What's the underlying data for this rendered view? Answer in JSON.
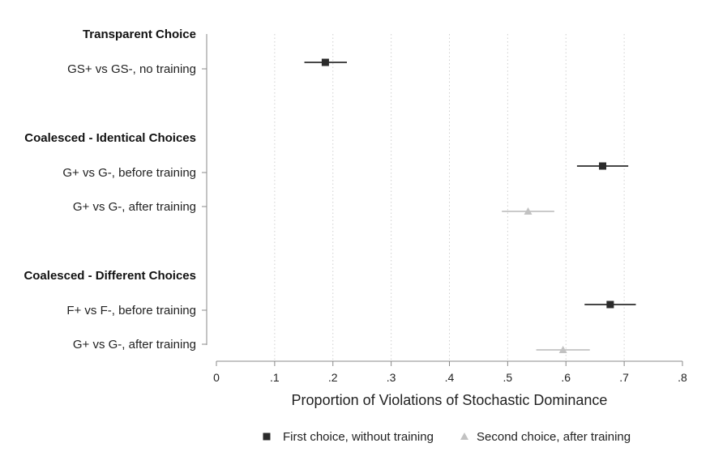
{
  "chart_data": {
    "type": "scatter",
    "subtype": "forest-plot-with-confidence-intervals",
    "xlabel": "Proportion of Violations of Stochastic Dominance",
    "xlim": [
      0,
      0.8
    ],
    "x_ticks": [
      0,
      0.1,
      0.2,
      0.3,
      0.4,
      0.5,
      0.6,
      0.7,
      0.8
    ],
    "x_tick_labels": [
      "0",
      ".1",
      ".2",
      ".3",
      ".4",
      ".5",
      ".6",
      ".7",
      ".8"
    ],
    "grid": "vertical dotted",
    "legend_position": "bottom",
    "groups": [
      {
        "label": "Transparent Choice",
        "rows": [
          {
            "label": "GS+ vs GS-, no training",
            "series": "First choice, without training",
            "estimate": 0.187,
            "ci": [
              0.151,
              0.224
            ]
          }
        ]
      },
      {
        "label": "Coalesced - Identical Choices",
        "rows": [
          {
            "label": "G+ vs G-, before training",
            "series": "First choice, without training",
            "estimate": 0.663,
            "ci": [
              0.619,
              0.707
            ]
          },
          {
            "label": "G+ vs G-, after training",
            "series": "Second choice, after training",
            "estimate": 0.535,
            "ci": [
              0.49,
              0.58
            ]
          }
        ]
      },
      {
        "label": "Coalesced - Different Choices",
        "rows": [
          {
            "label": "F+ vs F-, before training",
            "series": "First choice, without training",
            "estimate": 0.676,
            "ci": [
              0.632,
              0.72
            ]
          },
          {
            "label": "G+ vs G-, after training",
            "series": "Second choice, after training",
            "estimate": 0.595,
            "ci": [
              0.549,
              0.641
            ]
          }
        ]
      }
    ],
    "series": [
      {
        "name": "First choice, without training",
        "marker": "square",
        "color": "#2b2b2b"
      },
      {
        "name": "Second choice, after training",
        "marker": "triangle",
        "color": "#c2c2c2"
      }
    ]
  }
}
